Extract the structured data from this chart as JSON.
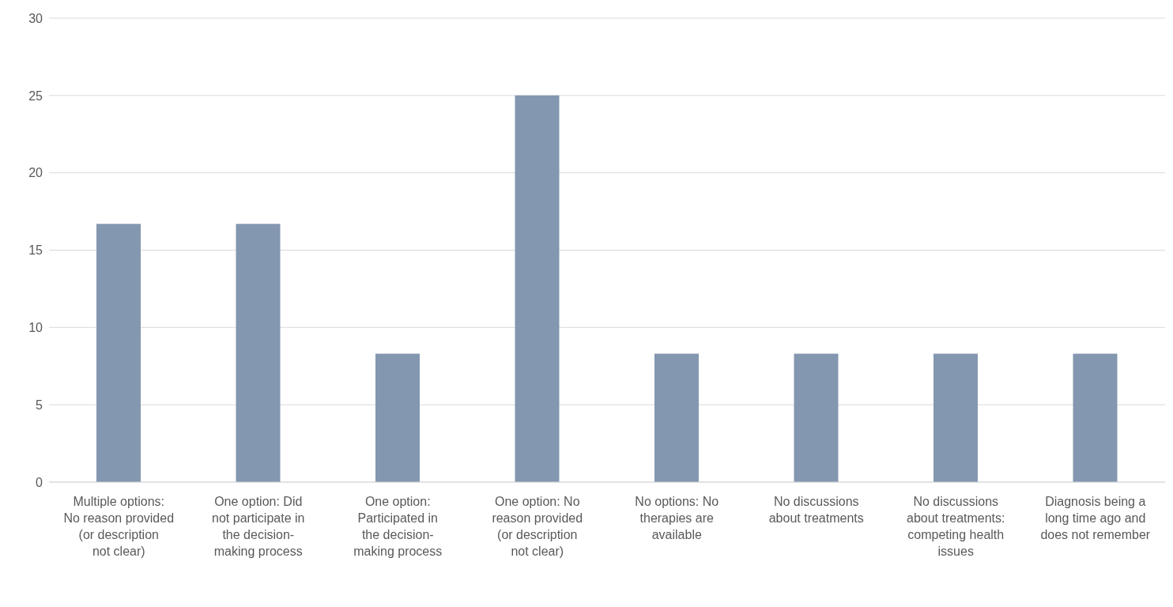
{
  "chart_data": {
    "type": "bar",
    "categories": [
      "Multiple options: No reason provided (or description not clear)",
      "One option: Did not participate in the decision-making process",
      "One option: Participated in the decision-making process",
      "One option: No reason provided (or description not clear)",
      "No options: No therapies are available",
      "No discussions about treatments",
      "No discussions about treatments: competing health issues",
      "Diagnosis being a long time ago and does not remember"
    ],
    "values": [
      16.7,
      16.7,
      8.3,
      25,
      8.3,
      8.3,
      8.3,
      8.3
    ],
    "color": "#8497b0",
    "ylim": [
      0,
      30
    ],
    "yticks": [
      0,
      5,
      10,
      15,
      20,
      25,
      30
    ],
    "grid": "y"
  }
}
